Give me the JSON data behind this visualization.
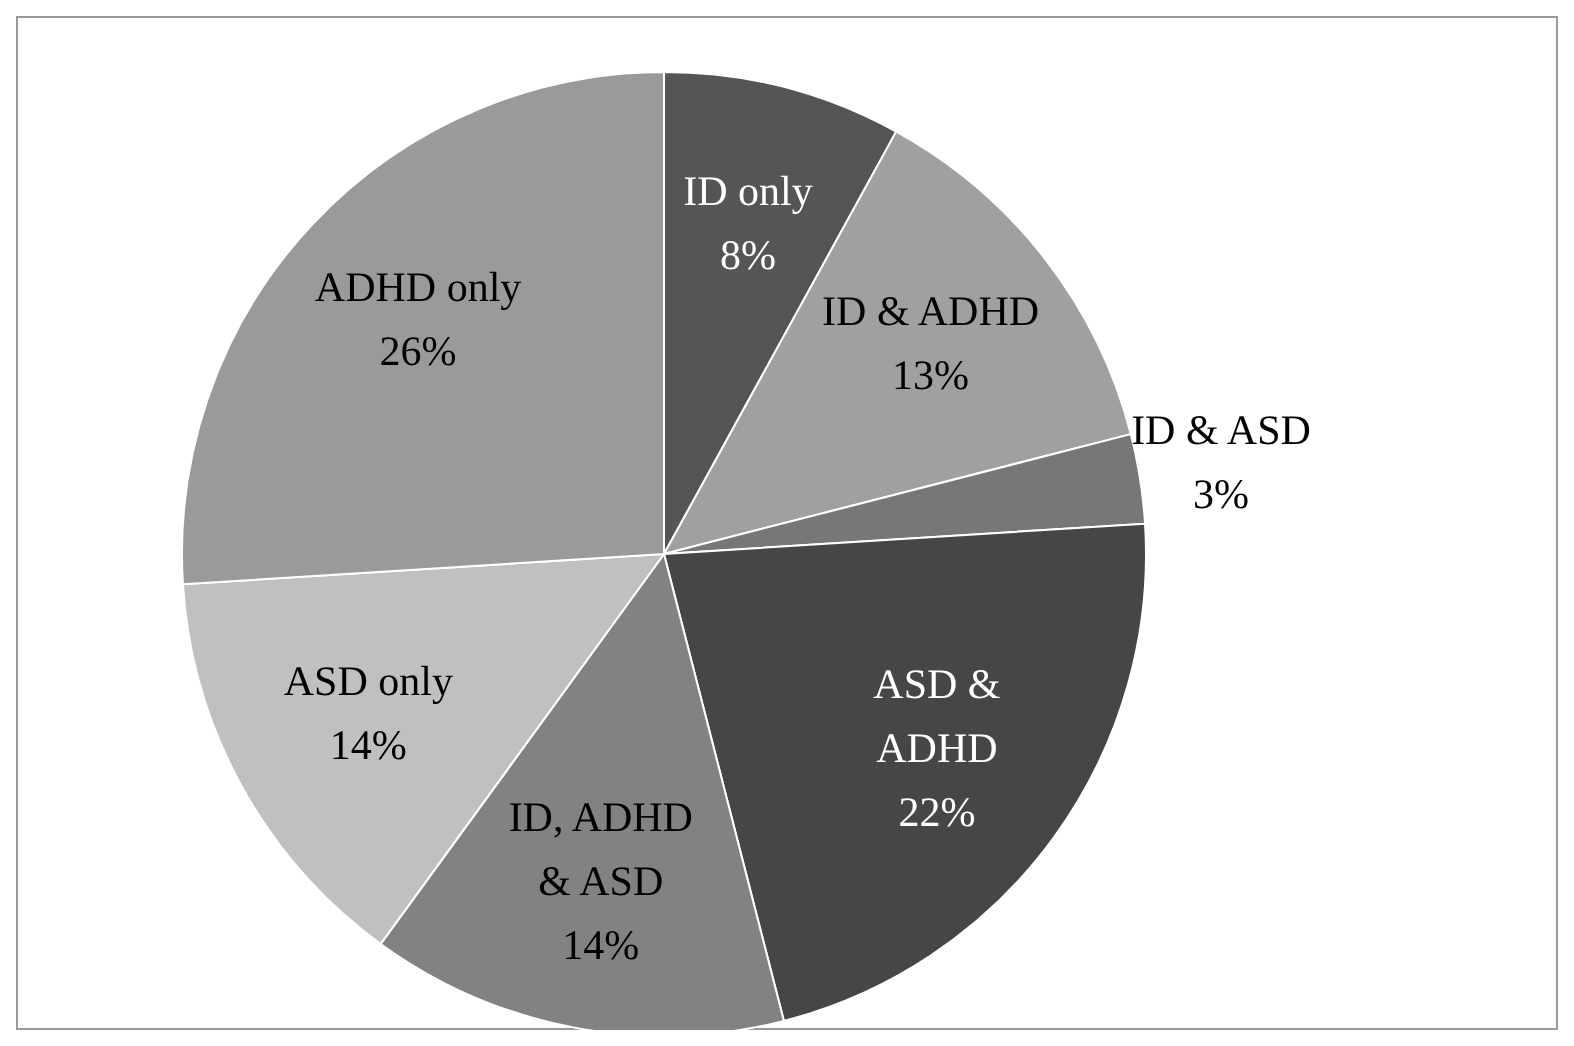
{
  "chart_data": {
    "type": "pie",
    "categories": [
      "ID only",
      "ID & ADHD",
      "ID & ASD",
      "ASD & ADHD",
      "ID, ADHD & ASD",
      "ASD only",
      "ADHD only"
    ],
    "values": [
      8,
      13,
      3,
      22,
      14,
      14,
      26
    ],
    "value_labels": [
      "8%",
      "13%",
      "3%",
      "22%",
      "14%",
      "14%",
      "26%"
    ],
    "colors": [
      "#555555",
      "#a0a0a0",
      "#777777",
      "#464646",
      "#828282",
      "#c0c0c0",
      "#9a9a9a"
    ]
  }
}
